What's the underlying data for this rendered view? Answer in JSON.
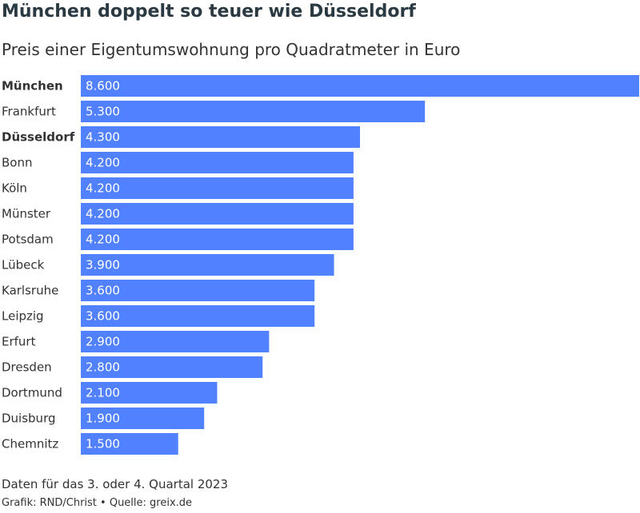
{
  "chart_data": {
    "type": "bar",
    "orientation": "horizontal",
    "title": "München doppelt so teuer wie Düsseldorf",
    "subtitle": "Preis einer Eigentumswohnung pro Quadratmeter in Euro",
    "categories": [
      "München",
      "Frankfurt",
      "Düsseldorf",
      "Bonn",
      "Köln",
      "Münster",
      "Potsdam",
      "Lübeck",
      "Karlsruhe",
      "Leipzig",
      "Erfurt",
      "Dresden",
      "Dortmund",
      "Duisburg",
      "Chemnitz"
    ],
    "highlighted": [
      "München",
      "Düsseldorf"
    ],
    "values": [
      8600,
      5300,
      4300,
      4200,
      4200,
      4200,
      4200,
      3900,
      3600,
      3600,
      2900,
      2800,
      2100,
      1900,
      1500
    ],
    "value_labels": [
      "8.600",
      "5.300",
      "4.300",
      "4.200",
      "4.200",
      "4.200",
      "4.200",
      "3.900",
      "3.600",
      "3.600",
      "2.900",
      "2.800",
      "2.100",
      "1.900",
      "1.500"
    ],
    "xlim": [
      0,
      8600
    ],
    "grid": false,
    "legend": "none",
    "bar_color": "#5281ff"
  },
  "footer": {
    "note": "Daten für das 3. oder 4. Quartal 2023",
    "credit": "Grafik: RND/Christ • Quelle: greix.de"
  }
}
